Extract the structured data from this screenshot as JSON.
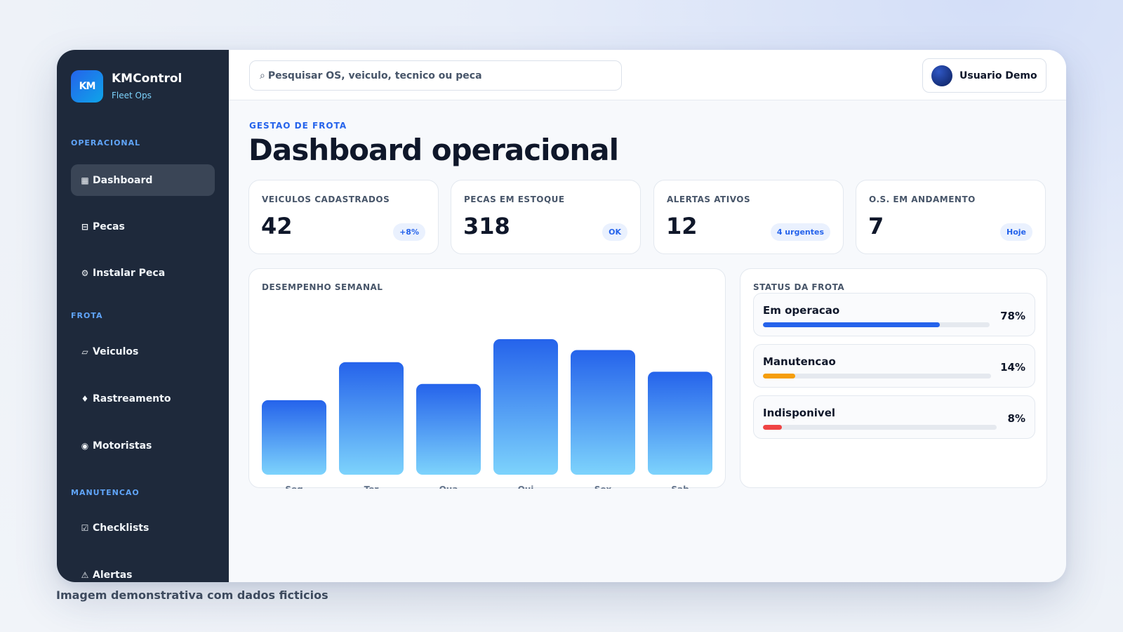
{
  "brand": {
    "logo_text": "KM",
    "name": "KMControl",
    "subtitle": "Fleet Ops"
  },
  "sidebar": {
    "sections": [
      {
        "label": "OPERACIONAL",
        "items": [
          {
            "label": "Dashboard",
            "icon": "grid-icon",
            "glyph": "▦",
            "active": true
          },
          {
            "label": "Pecas",
            "icon": "box-icon",
            "glyph": "⊟"
          },
          {
            "label": "Instalar Peca",
            "icon": "gear-icon",
            "glyph": "⚙"
          }
        ]
      },
      {
        "label": "FROTA",
        "items": [
          {
            "label": "Veiculos",
            "icon": "vehicle-icon",
            "glyph": "▱"
          },
          {
            "label": "Rastreamento",
            "icon": "location-icon",
            "glyph": "♦"
          },
          {
            "label": "Motoristas",
            "icon": "driver-icon",
            "glyph": "◉"
          }
        ]
      },
      {
        "label": "MANUTENCAO",
        "items": [
          {
            "label": "Checklists",
            "icon": "checkbox-icon",
            "glyph": "☑"
          },
          {
            "label": "Alertas",
            "icon": "warning-icon",
            "glyph": "⚠"
          }
        ]
      }
    ]
  },
  "topbar": {
    "search": {
      "icon": "search-icon",
      "glyph": "⌕",
      "placeholder": "Pesquisar OS, veiculo, tecnico ou peca"
    },
    "user": {
      "name": "Usuario Demo"
    }
  },
  "page": {
    "eyebrow": "GESTAO DE FROTA",
    "title": "Dashboard operacional"
  },
  "kpis": [
    {
      "label": "VEICULOS CADASTRADOS",
      "value": "42",
      "badge": "+8%"
    },
    {
      "label": "PECAS EM ESTOQUE",
      "value": "318",
      "badge": "OK"
    },
    {
      "label": "ALERTAS ATIVOS",
      "value": "12",
      "badge": "4 urgentes"
    },
    {
      "label": "O.S. EM ANDAMENTO",
      "value": "7",
      "badge": "Hoje"
    }
  ],
  "weekly": {
    "title": "DESEMPENHO SEMANAL"
  },
  "chart_data": {
    "type": "bar",
    "categories": [
      "Seg",
      "Ter",
      "Qua",
      "Qui",
      "Sex",
      "Sab"
    ],
    "values": [
      55,
      83,
      67,
      100,
      92,
      76
    ],
    "ylim": [
      0,
      100
    ],
    "title": "DESEMPENHO SEMANAL",
    "xlabel": "",
    "ylabel": "",
    "grid": false,
    "colors": {
      "bar_top": "#2563eb",
      "bar_bottom": "#7dd3fc"
    }
  },
  "fleet_status": {
    "title": "STATUS DA FROTA",
    "items": [
      {
        "name": "Em operacao",
        "percent": "78%",
        "fraction": 0.78,
        "color": "#2563eb"
      },
      {
        "name": "Manutencao",
        "percent": "14%",
        "fraction": 0.14,
        "color": "#f59e0b"
      },
      {
        "name": "Indisponivel",
        "percent": "8%",
        "fraction": 0.08,
        "color": "#ef4444"
      }
    ]
  },
  "caption": "Imagem demonstrativa com dados ficticios"
}
